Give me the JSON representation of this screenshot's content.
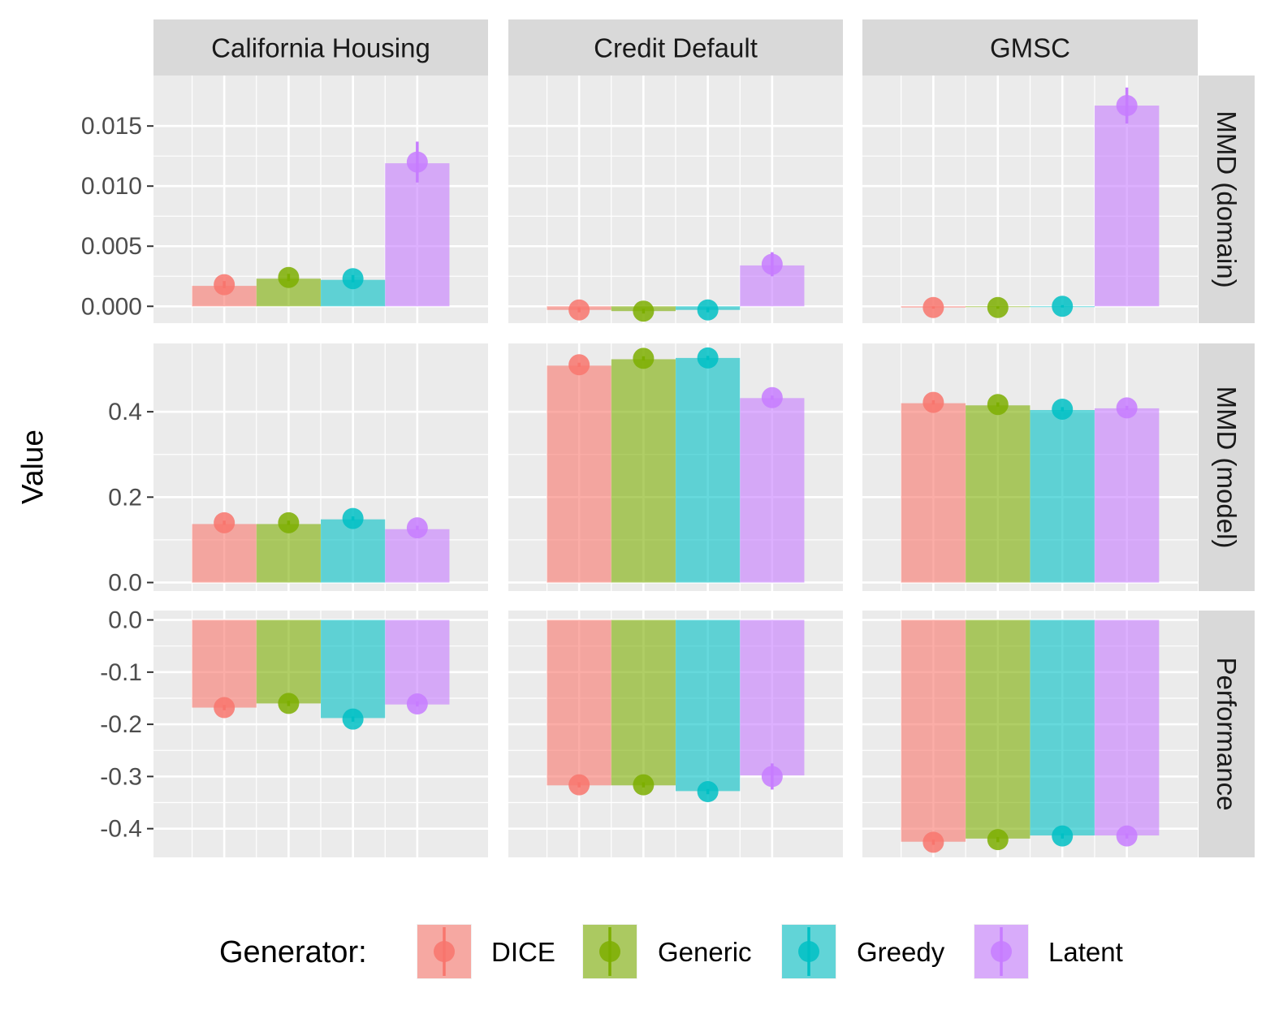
{
  "chart_data": {
    "type": "bar",
    "ylabel": "Value",
    "xlabel": "",
    "columns": [
      "California Housing",
      "Credit Default",
      "GMSC"
    ],
    "rows": [
      {
        "name": "MMD (domain)",
        "ylim": [
          -0.0014,
          0.0192
        ],
        "ticks": [
          0.0,
          0.005,
          0.01,
          0.015
        ],
        "tick_labels": [
          "0.000",
          "0.005",
          "0.010",
          "0.015"
        ]
      },
      {
        "name": "MMD (model)",
        "ylim": [
          -0.02,
          0.56
        ],
        "ticks": [
          0.0,
          0.2,
          0.4
        ],
        "tick_labels": [
          "0.0",
          "0.2",
          "0.4"
        ]
      },
      {
        "name": "Performance",
        "ylim": [
          -0.455,
          0.018
        ],
        "ticks": [
          0.0,
          -0.1,
          -0.2,
          -0.3,
          -0.4
        ],
        "tick_labels": [
          "0.0",
          "-0.1",
          "-0.2",
          "-0.3",
          "-0.4"
        ]
      }
    ],
    "categories": [
      "DICE",
      "Generic",
      "Greedy",
      "Latent"
    ],
    "colors": {
      "DICE": "#F8766D",
      "Generic": "#7CAE00",
      "Greedy": "#00BFC4",
      "Latent": "#C77CFF"
    },
    "panels": [
      {
        "row": "MMD (domain)",
        "column": "California Housing",
        "bars": [
          0.0017,
          0.0023,
          0.0022,
          0.0119
        ],
        "points": [
          0.0018,
          0.0024,
          0.0023,
          0.012
        ],
        "errors": [
          0.0003,
          0.0003,
          0.0003,
          0.0017
        ]
      },
      {
        "row": "MMD (domain)",
        "column": "Credit Default",
        "bars": [
          -0.0003,
          -0.0004,
          -0.0003,
          0.0034
        ],
        "points": [
          -0.0003,
          -0.0004,
          -0.0003,
          0.0035
        ],
        "errors": [
          0.0002,
          0.0002,
          0.0002,
          0.001
        ]
      },
      {
        "row": "MMD (domain)",
        "column": "GMSC",
        "bars": [
          -0.0001,
          -5e-05,
          -2e-05,
          0.0167
        ],
        "points": [
          -0.0001,
          -0.0001,
          0.0,
          0.0167
        ],
        "errors": [
          0.0001,
          0.0001,
          0.0001,
          0.0015
        ]
      },
      {
        "row": "MMD (model)",
        "column": "California Housing",
        "bars": [
          0.137,
          0.137,
          0.148,
          0.125
        ],
        "points": [
          0.14,
          0.14,
          0.15,
          0.128
        ],
        "errors": [
          0.005,
          0.005,
          0.005,
          0.005
        ]
      },
      {
        "row": "MMD (model)",
        "column": "Credit Default",
        "bars": [
          0.508,
          0.523,
          0.526,
          0.432
        ],
        "points": [
          0.51,
          0.525,
          0.526,
          0.433
        ],
        "errors": [
          0.005,
          0.005,
          0.005,
          0.005
        ]
      },
      {
        "row": "MMD (model)",
        "column": "GMSC",
        "bars": [
          0.42,
          0.415,
          0.404,
          0.408
        ],
        "points": [
          0.422,
          0.417,
          0.406,
          0.409
        ],
        "errors": [
          0.005,
          0.005,
          0.005,
          0.005
        ]
      },
      {
        "row": "Performance",
        "column": "California Housing",
        "bars": [
          -0.168,
          -0.16,
          -0.188,
          -0.162
        ],
        "points": [
          -0.168,
          -0.16,
          -0.19,
          -0.161
        ],
        "errors": [
          0.005,
          0.005,
          0.005,
          0.005
        ]
      },
      {
        "row": "Performance",
        "column": "Credit Default",
        "bars": [
          -0.317,
          -0.317,
          -0.328,
          -0.298
        ],
        "points": [
          -0.316,
          -0.316,
          -0.329,
          -0.3
        ],
        "errors": [
          0.005,
          0.005,
          0.005,
          0.025
        ]
      },
      {
        "row": "Performance",
        "column": "GMSC",
        "bars": [
          -0.425,
          -0.419,
          -0.413,
          -0.413
        ],
        "points": [
          -0.426,
          -0.421,
          -0.414,
          -0.414
        ],
        "errors": [
          0.005,
          0.005,
          0.005,
          0.005
        ]
      }
    ],
    "legend": {
      "title": "Generator:",
      "position": "bottom",
      "items": [
        "DICE",
        "Generic",
        "Greedy",
        "Latent"
      ]
    },
    "grid": true
  }
}
